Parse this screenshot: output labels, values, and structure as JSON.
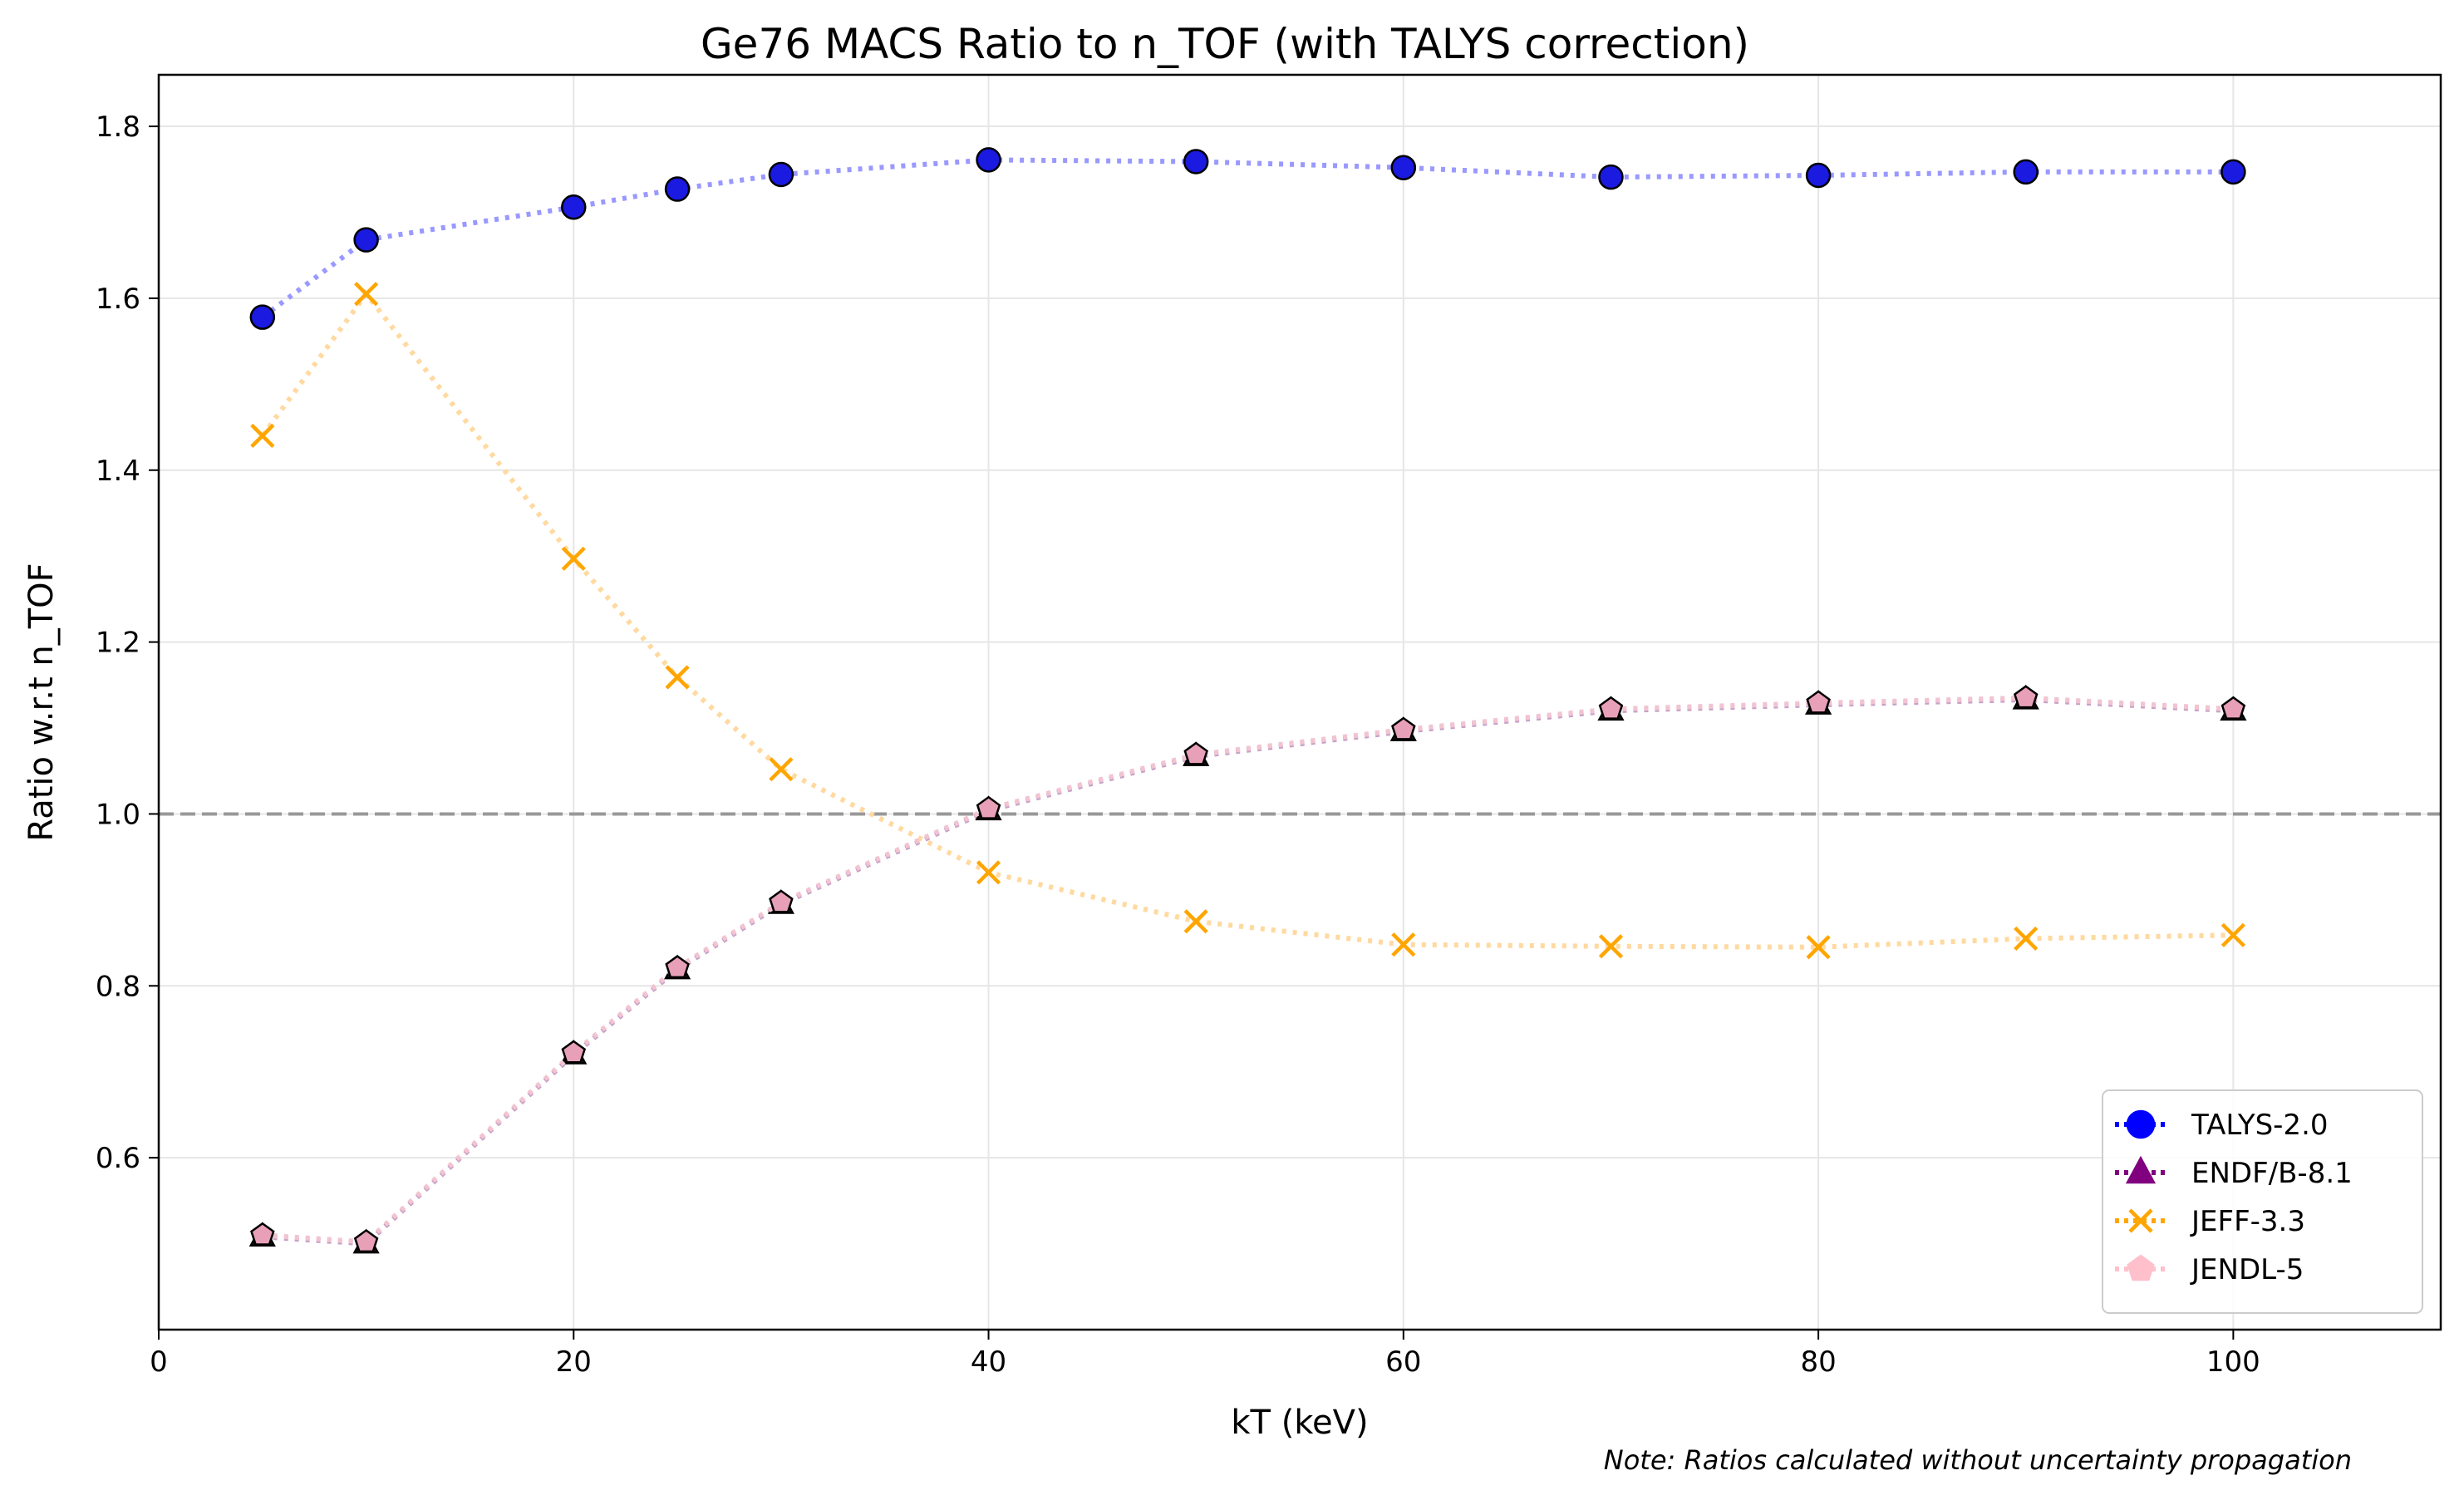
{
  "chart_data": {
    "type": "line",
    "title": "Ge76 MACS Ratio to n_TOF (with TALYS correction)",
    "xlabel": "kT (keV)",
    "ylabel": "Ratio w.r.t n_TOF",
    "xlim": [
      0,
      110
    ],
    "ylim": [
      0.4,
      1.86
    ],
    "xticks": [
      0,
      20,
      40,
      60,
      80,
      100
    ],
    "yticks": [
      0.6,
      0.8,
      1.0,
      1.2,
      1.4,
      1.6,
      1.8
    ],
    "grid": true,
    "legend_position": "lower-right",
    "reference_line": {
      "y": 1.0,
      "style": "dashed",
      "color": "#999999"
    },
    "x": [
      5,
      10,
      20,
      25,
      30,
      40,
      50,
      60,
      70,
      80,
      90,
      100
    ],
    "series": [
      {
        "name": "TALYS-2.0",
        "marker": "circle",
        "color": "#0000ff",
        "values": [
          1.578,
          1.668,
          1.706,
          1.727,
          1.744,
          1.761,
          1.759,
          1.752,
          1.741,
          1.743,
          1.747,
          1.747
        ]
      },
      {
        "name": "ENDF/B-8.1",
        "marker": "triangle",
        "color": "#800080",
        "values": [
          0.508,
          0.5,
          0.72,
          0.819,
          0.895,
          1.004,
          1.067,
          1.096,
          1.12,
          1.127,
          1.133,
          1.12
        ]
      },
      {
        "name": "JEFF-3.3",
        "marker": "x",
        "color": "#ffa500",
        "values": [
          1.44,
          1.605,
          1.297,
          1.159,
          1.052,
          0.932,
          0.875,
          0.848,
          0.846,
          0.845,
          0.855,
          0.859
        ]
      },
      {
        "name": "JENDL-5",
        "marker": "pentagon",
        "color": "#ffc0cb",
        "values": [
          0.51,
          0.502,
          0.722,
          0.821,
          0.897,
          1.006,
          1.069,
          1.098,
          1.122,
          1.129,
          1.135,
          1.122
        ]
      }
    ],
    "note": "Note: Ratios calculated without uncertainty propagation"
  }
}
